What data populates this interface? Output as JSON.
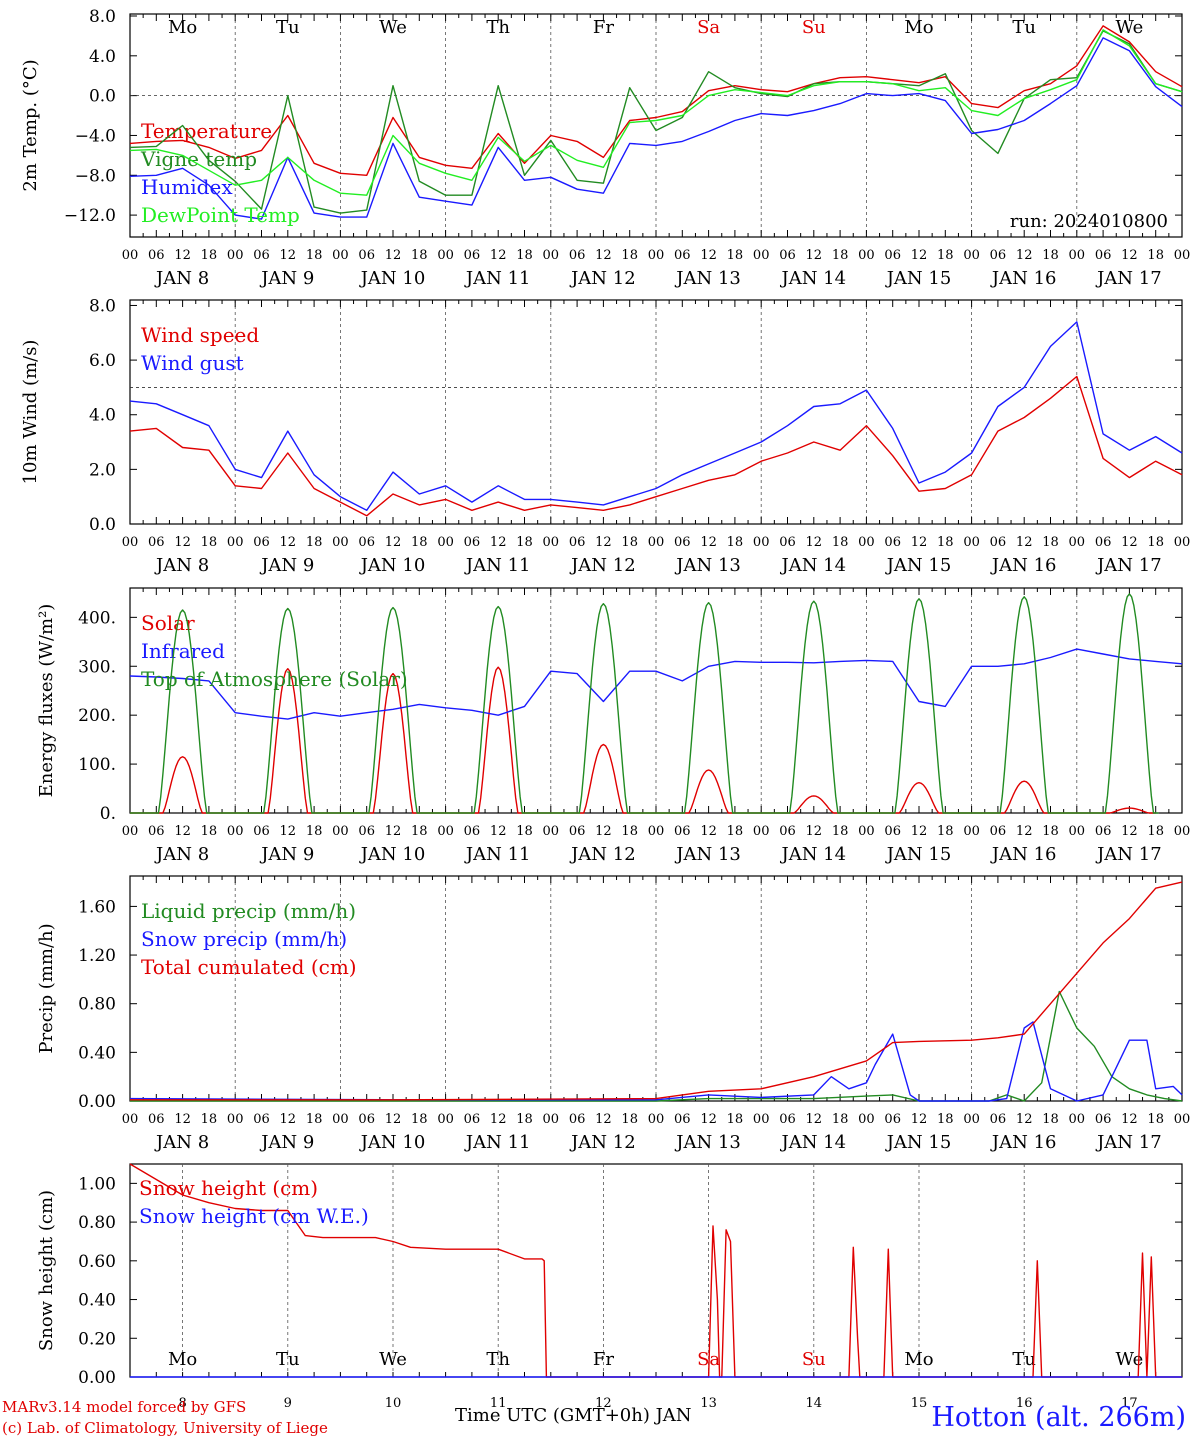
{
  "station": "Hotton (alt. 266m)",
  "credits": {
    "line1": "MARv3.14 model forced by GFS",
    "line2": "(c) Lab. of Climatology, University of Liege"
  },
  "xlabel_bottom": "Time UTC (GMT+0h) JAN",
  "colors": {
    "red": "#e00000",
    "darkgreen": "#228b22",
    "blue": "#1a1aff",
    "lightgreen": "#22ee22"
  },
  "days": [
    {
      "weekday": "Mo",
      "date": "JAN  8",
      "day": "8",
      "weekend": false
    },
    {
      "weekday": "Tu",
      "date": "JAN  9",
      "day": "9",
      "weekend": false
    },
    {
      "weekday": "We",
      "date": "JAN 10",
      "day": "10",
      "weekend": false
    },
    {
      "weekday": "Th",
      "date": "JAN 11",
      "day": "11",
      "weekend": false
    },
    {
      "weekday": "Fr",
      "date": "JAN 12",
      "day": "12",
      "weekend": false
    },
    {
      "weekday": "Sa",
      "date": "JAN 13",
      "day": "13",
      "weekend": true
    },
    {
      "weekday": "Su",
      "date": "JAN 14",
      "day": "14",
      "weekend": true
    },
    {
      "weekday": "Mo",
      "date": "JAN 15",
      "day": "15",
      "weekend": false
    },
    {
      "weekday": "Tu",
      "date": "JAN 16",
      "day": "16",
      "weekend": false
    },
    {
      "weekday": "We",
      "date": "JAN 17",
      "day": "17",
      "weekend": false
    }
  ],
  "hour_ticks": [
    "00",
    "06",
    "12",
    "18"
  ],
  "chart_data": [
    {
      "id": "temp",
      "type": "line",
      "ylabel": "2m Temp. (°C)",
      "ylim": [
        -14.2,
        8.2
      ],
      "yticks": [
        -12,
        -8,
        -4,
        0,
        4,
        8
      ],
      "ytick_labels": [
        "−12.0",
        "−8.0",
        "−4.0",
        "0.0",
        "4.0",
        "8.0"
      ],
      "dashed_line": 0,
      "run": "run: 2024010800",
      "series": [
        {
          "name": "Temperature",
          "color": "#e00000",
          "x": [
            0,
            6,
            12,
            18,
            24,
            30,
            36,
            42,
            48,
            54,
            60,
            66,
            72,
            78,
            84,
            90,
            96,
            102,
            108,
            114,
            120,
            126,
            132,
            138,
            144,
            150,
            156,
            162,
            168,
            174,
            180,
            186,
            192,
            198,
            204,
            210,
            216,
            222,
            228,
            234,
            240
          ],
          "y": [
            -4.8,
            -4.6,
            -4.5,
            -5.2,
            -6.3,
            -5.5,
            -2.0,
            -6.8,
            -7.8,
            -8.0,
            -2.2,
            -6.2,
            -7.0,
            -7.3,
            -3.8,
            -6.8,
            -4.0,
            -4.6,
            -6.2,
            -2.5,
            -2.2,
            -1.6,
            0.5,
            1.0,
            0.6,
            0.4,
            1.2,
            1.8,
            1.9,
            1.6,
            1.3,
            1.9,
            -0.8,
            -1.2,
            0.5,
            1.2,
            3.0,
            7.0,
            5.4,
            2.4,
            0.9
          ]
        },
        {
          "name": "Vigne temp",
          "color": "#228b22",
          "x": [
            0,
            6,
            12,
            18,
            24,
            30,
            36,
            42,
            48,
            54,
            60,
            66,
            72,
            78,
            84,
            90,
            96,
            102,
            108,
            114,
            120,
            126,
            132,
            138,
            144,
            150,
            156,
            162,
            168,
            174,
            180,
            186,
            192,
            198,
            204,
            210,
            216,
            222,
            228,
            234,
            240
          ],
          "y": [
            -5.2,
            -5.1,
            -3.0,
            -6.5,
            -8.6,
            -11.4,
            0.0,
            -11.2,
            -11.8,
            -11.5,
            1.0,
            -8.6,
            -10.0,
            -10.0,
            1.0,
            -8.0,
            -4.5,
            -8.5,
            -8.8,
            0.8,
            -3.5,
            -2.2,
            2.4,
            0.8,
            0.2,
            -0.1,
            1.2,
            1.4,
            1.4,
            1.2,
            1.0,
            2.2,
            -3.5,
            -5.8,
            -0.3,
            1.6,
            1.8,
            6.5,
            5.2,
            1.2,
            0.4
          ]
        },
        {
          "name": "Humidex",
          "color": "#1a1aff",
          "x": [
            0,
            6,
            12,
            18,
            24,
            30,
            36,
            42,
            48,
            54,
            60,
            66,
            72,
            78,
            84,
            90,
            96,
            102,
            108,
            114,
            120,
            126,
            132,
            138,
            144,
            150,
            156,
            162,
            168,
            174,
            180,
            186,
            192,
            198,
            204,
            210,
            216,
            222,
            228,
            234,
            240
          ],
          "y": [
            -8.1,
            -8.0,
            -7.3,
            -9.0,
            -12.0,
            -12.4,
            -6.2,
            -11.8,
            -12.2,
            -12.2,
            -4.8,
            -10.2,
            -10.6,
            -11.0,
            -5.2,
            -8.5,
            -8.2,
            -9.4,
            -9.8,
            -4.8,
            -5.0,
            -4.6,
            -3.6,
            -2.5,
            -1.8,
            -2.0,
            -1.5,
            -0.8,
            0.2,
            0.0,
            0.2,
            -0.5,
            -3.8,
            -3.4,
            -2.5,
            -0.8,
            1.0,
            5.8,
            4.5,
            0.9,
            -1.1
          ]
        },
        {
          "name": "DewPoint Temp",
          "color": "#22ee22",
          "x": [
            0,
            6,
            12,
            18,
            24,
            30,
            36,
            42,
            48,
            54,
            60,
            66,
            72,
            78,
            84,
            90,
            96,
            102,
            108,
            114,
            120,
            126,
            132,
            138,
            144,
            150,
            156,
            162,
            168,
            174,
            180,
            186,
            192,
            198,
            204,
            210,
            216,
            222,
            228,
            234,
            240
          ],
          "y": [
            -5.5,
            -5.4,
            -6.0,
            -7.5,
            -9.0,
            -8.5,
            -6.2,
            -8.5,
            -9.8,
            -10.0,
            -4.0,
            -6.8,
            -7.8,
            -8.5,
            -4.2,
            -6.6,
            -5.0,
            -6.5,
            -7.2,
            -2.7,
            -2.5,
            -2.0,
            0.0,
            0.6,
            0.3,
            0.0,
            1.0,
            1.4,
            1.4,
            1.2,
            0.5,
            0.8,
            -1.5,
            -2.0,
            -0.3,
            0.6,
            1.6,
            6.6,
            5.0,
            1.2,
            0.4
          ]
        }
      ]
    },
    {
      "id": "wind",
      "type": "line",
      "ylabel": "10m Wind (m/s)",
      "ylim": [
        0,
        8.2
      ],
      "yticks": [
        0,
        2,
        4,
        6,
        8
      ],
      "ytick_labels": [
        "0.0",
        "2.0",
        "4.0",
        "6.0",
        "8.0"
      ],
      "dashed_line": 5,
      "series": [
        {
          "name": "Wind speed",
          "color": "#e00000",
          "x": [
            0,
            6,
            12,
            18,
            24,
            30,
            36,
            42,
            48,
            54,
            60,
            66,
            72,
            78,
            84,
            90,
            96,
            102,
            108,
            114,
            120,
            126,
            132,
            138,
            144,
            150,
            156,
            162,
            168,
            174,
            180,
            186,
            192,
            198,
            204,
            210,
            216,
            222,
            228,
            234,
            240
          ],
          "y": [
            3.4,
            3.5,
            2.8,
            2.7,
            1.4,
            1.3,
            2.6,
            1.3,
            0.8,
            0.3,
            1.1,
            0.7,
            0.9,
            0.5,
            0.8,
            0.5,
            0.7,
            0.6,
            0.5,
            0.7,
            1.0,
            1.3,
            1.6,
            1.8,
            2.3,
            2.6,
            3.0,
            2.7,
            3.6,
            2.5,
            1.2,
            1.3,
            1.8,
            3.4,
            3.9,
            4.6,
            5.4,
            2.4,
            1.7,
            2.3,
            1.8
          ]
        },
        {
          "name": "Wind gust",
          "color": "#1a1aff",
          "x": [
            0,
            6,
            12,
            18,
            24,
            30,
            36,
            42,
            48,
            54,
            60,
            66,
            72,
            78,
            84,
            90,
            96,
            102,
            108,
            114,
            120,
            126,
            132,
            138,
            144,
            150,
            156,
            162,
            168,
            174,
            180,
            186,
            192,
            198,
            204,
            210,
            216,
            222,
            228,
            234,
            240
          ],
          "y": [
            4.5,
            4.4,
            4.0,
            3.6,
            2.0,
            1.7,
            3.4,
            1.8,
            1.0,
            0.5,
            1.9,
            1.1,
            1.4,
            0.8,
            1.4,
            0.9,
            0.9,
            0.8,
            0.7,
            1.0,
            1.3,
            1.8,
            2.2,
            2.6,
            3.0,
            3.6,
            4.3,
            4.4,
            4.9,
            3.5,
            1.5,
            1.9,
            2.6,
            4.3,
            5.0,
            6.5,
            7.4,
            3.3,
            2.7,
            3.2,
            2.6
          ]
        }
      ]
    },
    {
      "id": "energy",
      "type": "line",
      "ylabel": "Energy fluxes (W/m²)",
      "ylim": [
        0,
        460
      ],
      "yticks": [
        0,
        100,
        200,
        300,
        400
      ],
      "ytick_labels": [
        "0.",
        "100.",
        "200.",
        "300.",
        "400."
      ],
      "series": [
        {
          "name": "Solar",
          "color": "#e00000",
          "peaks": [
            115,
            295,
            285,
            298,
            140,
            88,
            35,
            62,
            65,
            10
          ]
        },
        {
          "name": "Infrared",
          "color": "#1a1aff",
          "x": [
            0,
            6,
            12,
            18,
            24,
            30,
            36,
            42,
            48,
            54,
            60,
            66,
            72,
            78,
            84,
            90,
            96,
            102,
            108,
            114,
            120,
            126,
            132,
            138,
            144,
            150,
            156,
            162,
            168,
            174,
            180,
            186,
            192,
            198,
            204,
            210,
            216,
            222,
            228,
            234,
            240
          ],
          "y": [
            280,
            278,
            275,
            270,
            205,
            198,
            192,
            205,
            198,
            205,
            212,
            222,
            215,
            210,
            200,
            218,
            290,
            285,
            228,
            290,
            290,
            270,
            300,
            310,
            308,
            308,
            307,
            310,
            312,
            310,
            228,
            218,
            300,
            300,
            305,
            318,
            335,
            325,
            315,
            310,
            305
          ]
        },
        {
          "name": "Top of Atmosphere (Solar)",
          "color": "#228b22",
          "peaks": [
            415,
            418,
            420,
            422,
            428,
            430,
            433,
            438,
            442,
            448
          ]
        }
      ]
    },
    {
      "id": "precip",
      "type": "line",
      "ylabel": "Precip (mm/h)",
      "ylim": [
        0,
        1.85
      ],
      "yticks": [
        0,
        0.4,
        0.8,
        1.2,
        1.6
      ],
      "ytick_labels": [
        "0.00",
        "0.40",
        "0.80",
        "1.20",
        "1.60"
      ],
      "series": [
        {
          "name": "Liquid precip (mm/h)",
          "color": "#228b22",
          "x": [
            0,
            120,
            132,
            144,
            156,
            168,
            174,
            180,
            190,
            196,
            200,
            204,
            208,
            212,
            216,
            220,
            224,
            228,
            232,
            236,
            240
          ],
          "y": [
            0,
            0,
            0.02,
            0.02,
            0.02,
            0.04,
            0.05,
            0,
            0,
            0,
            0.05,
            0,
            0.15,
            0.9,
            0.6,
            0.45,
            0.2,
            0.1,
            0.05,
            0.02,
            0
          ]
        },
        {
          "name": "Snow precip (mm/h)",
          "color": "#1a1aff",
          "x": [
            0,
            60,
            120,
            132,
            144,
            156,
            160,
            164,
            168,
            170,
            174,
            178,
            180,
            190,
            196,
            200,
            204,
            206,
            210,
            216,
            222,
            228,
            232,
            234,
            238,
            240
          ],
          "y": [
            0.02,
            0.01,
            0.01,
            0.05,
            0.03,
            0.05,
            0.2,
            0.1,
            0.15,
            0.3,
            0.55,
            0.05,
            0,
            0,
            0,
            0.02,
            0.6,
            0.65,
            0.1,
            0,
            0.05,
            0.5,
            0.5,
            0.1,
            0.12,
            0.05
          ]
        },
        {
          "name": "Total cumulated (cm)",
          "color": "#e00000",
          "x": [
            0,
            60,
            120,
            132,
            144,
            156,
            168,
            174,
            180,
            192,
            198,
            204,
            210,
            216,
            222,
            228,
            234,
            240
          ],
          "y": [
            0.01,
            0.01,
            0.02,
            0.08,
            0.1,
            0.2,
            0.33,
            0.48,
            0.49,
            0.5,
            0.52,
            0.55,
            0.8,
            1.05,
            1.3,
            1.5,
            1.75,
            1.8
          ]
        }
      ]
    },
    {
      "id": "snow",
      "type": "line",
      "ylabel": "Snow height (cm)",
      "ylim": [
        0,
        1.1
      ],
      "yticks": [
        0,
        0.2,
        0.4,
        0.6,
        0.8,
        1.0
      ],
      "ytick_labels": [
        "0.00",
        "0.20",
        "0.40",
        "0.60",
        "0.80",
        "1.00"
      ],
      "series": [
        {
          "name": "Snow height (cm)",
          "color": "#e00000",
          "x": [
            0,
            6,
            12,
            18,
            24,
            30,
            36,
            40,
            44,
            48,
            56,
            60,
            64,
            72,
            80,
            84,
            90,
            94,
            94.5,
            95,
            120,
            132,
            133,
            134,
            134.5,
            135,
            136,
            137,
            138,
            139,
            140,
            141,
            160,
            164,
            165,
            166,
            166.5,
            167,
            172,
            173,
            174,
            175,
            176,
            204,
            205,
            206,
            207,
            208,
            230,
            231,
            232,
            233,
            234,
            235,
            236,
            240
          ],
          "y": [
            1.1,
            1.02,
            0.94,
            0.9,
            0.87,
            0.86,
            0.86,
            0.73,
            0.72,
            0.72,
            0.72,
            0.7,
            0.67,
            0.66,
            0.66,
            0.66,
            0.61,
            0.61,
            0.6,
            0,
            0,
            0,
            0.78,
            0.4,
            0,
            0,
            0.76,
            0.7,
            0,
            0,
            0,
            0,
            0,
            0,
            0.67,
            0.2,
            0,
            0,
            0,
            0.66,
            0,
            0,
            0,
            0,
            0,
            0,
            0.6,
            0,
            0,
            0.64,
            0,
            0.62,
            0,
            0,
            0,
            0
          ]
        },
        {
          "name": "Snow height (cm W.E.)",
          "color": "#1a1aff",
          "x": [
            0,
            240
          ],
          "y": [
            0,
            0
          ]
        }
      ]
    }
  ]
}
